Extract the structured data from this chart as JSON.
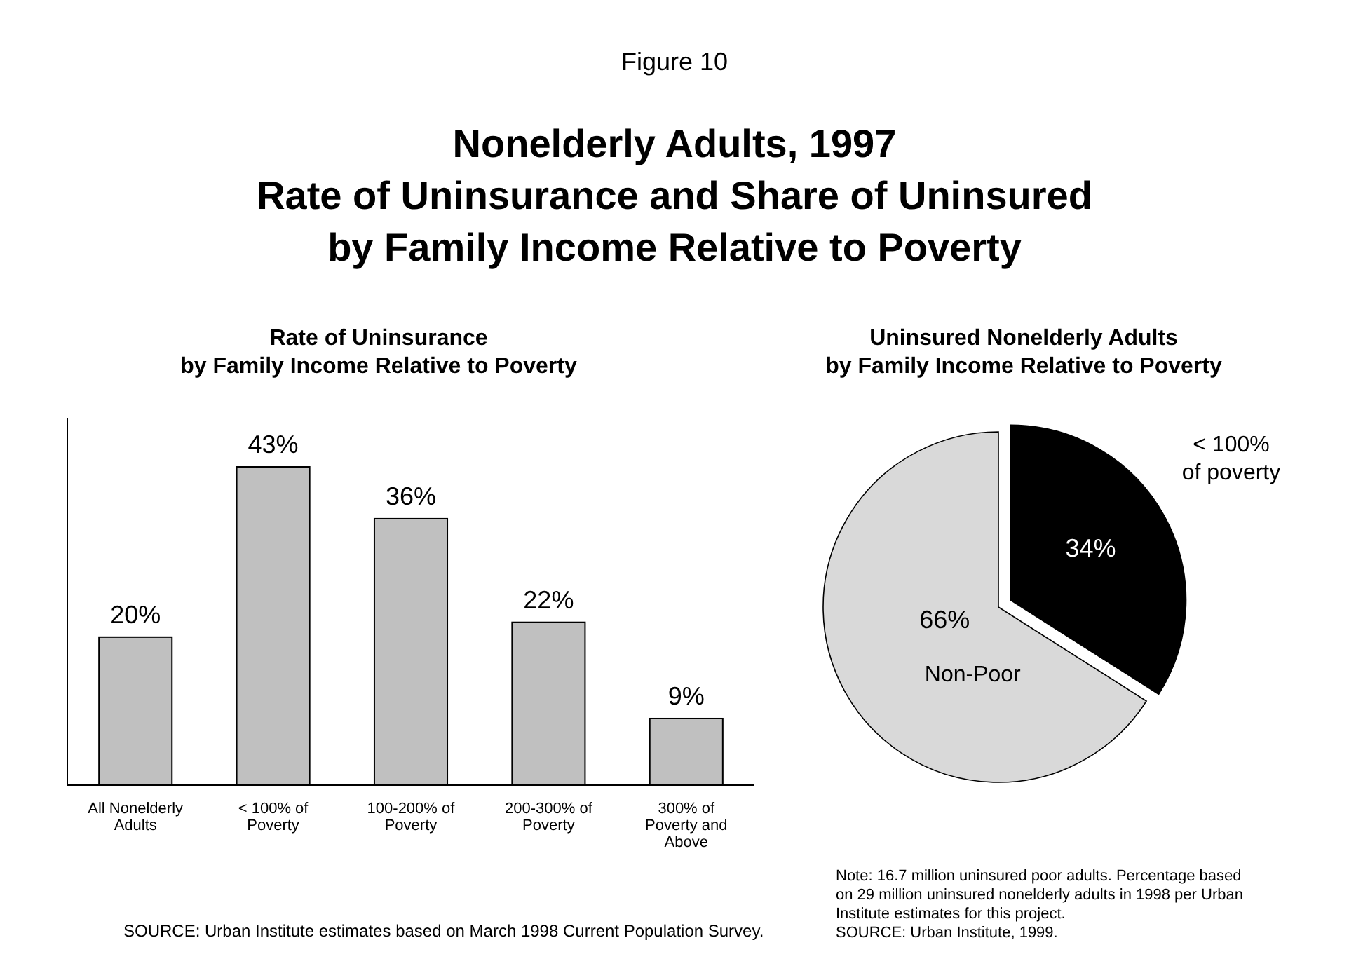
{
  "chart_data": [
    {
      "type": "other",
      "title": "Nonelderly Adults, 1997\nRate of Uninsurance and Share of Uninsured\nby Family Income Relative to Poverty",
      "annotations": [
        "Figure 10"
      ]
    },
    {
      "type": "bar",
      "title": "Rate of Uninsurance\nby Family Income Relative to Poverty",
      "categories": [
        "All Nonelderly\nAdults",
        "< 100% of\nPoverty",
        "100-200% of\nPoverty",
        "200-300% of\nPoverty",
        "300% of\nPoverty and\nAbove"
      ],
      "values": [
        20,
        43,
        36,
        22,
        9
      ],
      "value_labels": [
        "20%",
        "43%",
        "36%",
        "22%",
        "9%"
      ],
      "color": "#c0c0c0",
      "annotations": [
        "SOURCE: Urban Institute estimates based on March 1998 Current Population Survey."
      ]
    },
    {
      "type": "pie",
      "title": "Uninsured Nonelderly Adults\nby Family Income Relative to Poverty",
      "categories": [
        "< 100%\nof poverty",
        "Non-Poor"
      ],
      "values": [
        34,
        66
      ],
      "value_labels": [
        "34%",
        "66%"
      ],
      "colors": [
        "#000000",
        "#d9d9d9"
      ],
      "annotations": [
        "Note:  16.7  million uninsured poor adults.  Percentage based\non 29 million uninsured nonelderly adults in 1998 per Urban\nInstitute estimates for this project.\nSOURCE: Urban Institute, 1999."
      ]
    }
  ]
}
